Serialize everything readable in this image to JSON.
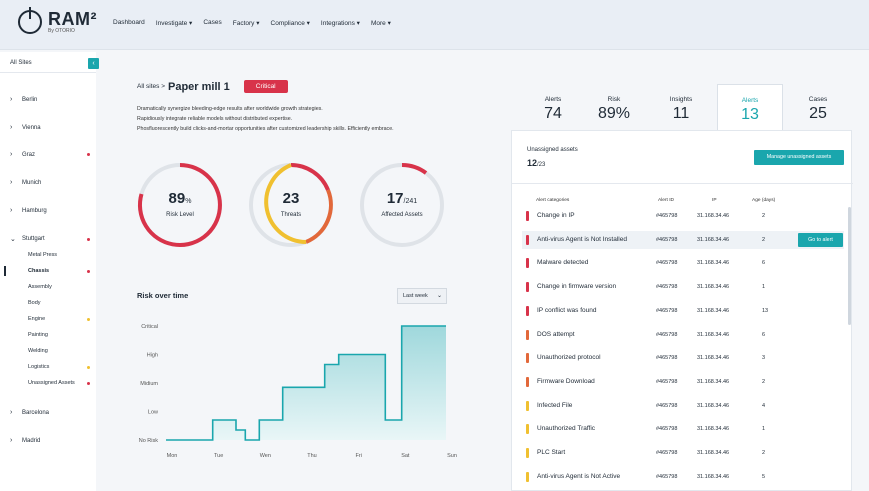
{
  "app": {
    "name": "RAM²",
    "subtitle": "By OTORIO"
  },
  "nav": [
    "Dashboard",
    "Investigate ▾",
    "Cases",
    "Factory ▾",
    "Compliance ▾",
    "Integrations ▾",
    "More ▾"
  ],
  "sidebar": {
    "header": "All Sites",
    "collapse_icon": "‹",
    "sites": [
      {
        "label": "Berlin",
        "chev": "›",
        "dot": ""
      },
      {
        "label": "Vienna",
        "chev": "›",
        "dot": ""
      },
      {
        "label": "Graz",
        "chev": "›",
        "dot": "#d8334a"
      },
      {
        "label": "Munich",
        "chev": "›",
        "dot": ""
      },
      {
        "label": "Hamburg",
        "chev": "›",
        "dot": ""
      },
      {
        "label": "Stuttgart",
        "chev": "⌄",
        "dot": "#d8334a"
      },
      {
        "label": "Barcelona",
        "chev": "›",
        "dot": ""
      },
      {
        "label": "Madrid",
        "chev": "›",
        "dot": ""
      }
    ],
    "sub_items": [
      {
        "label": "Metal Press",
        "dot": ""
      },
      {
        "label": "Chassis",
        "dot": "#d8334a"
      },
      {
        "label": "Assembly",
        "dot": ""
      },
      {
        "label": "Body",
        "dot": ""
      },
      {
        "label": "Engine",
        "dot": "#f0c030"
      },
      {
        "label": "Painting",
        "dot": ""
      },
      {
        "label": "Welding",
        "dot": ""
      },
      {
        "label": "Logistics",
        "dot": "#f0c030"
      },
      {
        "label": "Unassigned Assets",
        "dot": "#d8334a"
      }
    ]
  },
  "header": {
    "breadcrumb": "All sites >",
    "title": "Paper mill 1",
    "badge": "Critical",
    "description": [
      "Dramatically synergize bleeding-edge results after worldwide growth strategies.",
      "Rapidiously integrate reliable models without distributed expertise.",
      "Phosfluorescently build clicks-and-mortar opportunities after customized leadership skills. Efficiently embrace."
    ]
  },
  "gauges": [
    {
      "value": "89",
      "suffix": "%",
      "label": "Risk Level"
    },
    {
      "value": "23",
      "suffix": "",
      "label": "Threats"
    },
    {
      "value": "17",
      "suffix": "/241",
      "label": "Affected Assets"
    }
  ],
  "colors": {
    "accent": "#1aa6ad",
    "critical": "#d8334a",
    "high": "#e2683a",
    "medium": "#f0c030"
  },
  "risk_over_time": {
    "title": "Risk over time",
    "select_value": "Last week",
    "chart_data": {
      "type": "line",
      "x": [
        "Mon",
        "Tue",
        "Wen",
        "Thu",
        "Fri",
        "Sat",
        "Sun"
      ],
      "ylabels": [
        "Critical",
        "High",
        "Midium",
        "Low",
        "No Risk"
      ],
      "ylim": [
        0,
        4
      ],
      "points": [
        [
          0,
          0
        ],
        [
          1,
          0
        ],
        [
          1,
          0.7
        ],
        [
          1.5,
          0.7
        ],
        [
          1.5,
          0.35
        ],
        [
          1.7,
          0.35
        ],
        [
          1.7,
          0
        ],
        [
          2,
          0
        ],
        [
          2,
          0.7
        ],
        [
          2.5,
          0.7
        ],
        [
          2.5,
          1.85
        ],
        [
          3.4,
          1.85
        ],
        [
          3.4,
          2.65
        ],
        [
          3.7,
          2.65
        ],
        [
          3.7,
          3
        ],
        [
          4.7,
          3
        ],
        [
          4.7,
          0.7
        ],
        [
          5.05,
          0.7
        ],
        [
          5.05,
          4
        ],
        [
          6,
          4
        ]
      ]
    }
  },
  "tabs": [
    {
      "label": "Alerts",
      "value": "74"
    },
    {
      "label": "Risk",
      "value": "89%"
    },
    {
      "label": "Insights",
      "value": "11"
    },
    {
      "label": "Alerts",
      "value": "13"
    },
    {
      "label": "Cases",
      "value": "25"
    }
  ],
  "unassigned": {
    "title": "Unassigned assets",
    "count": "12",
    "total": "/23",
    "button": "Manage unassigned assets"
  },
  "table": {
    "headers": [
      "Alert categories",
      "Alert ID",
      "IP",
      "Age (days)"
    ],
    "go_button": "Go to alert",
    "rows": [
      {
        "cat": "Change in IP",
        "id": "#465798",
        "ip": "31.168.34.46",
        "age": "2",
        "color": "#d8334a"
      },
      {
        "cat": "Anti-virus Agent is Not Installed",
        "id": "#465798",
        "ip": "31.168.34.46",
        "age": "2",
        "color": "#d8334a"
      },
      {
        "cat": "Malware detected",
        "id": "#465798",
        "ip": "31.168.34.46",
        "age": "6",
        "color": "#d8334a"
      },
      {
        "cat": "Change in firmware version",
        "id": "#465798",
        "ip": "31.168.34.46",
        "age": "1",
        "color": "#d8334a"
      },
      {
        "cat": "IP conflict was found",
        "id": "#465798",
        "ip": "31.168.34.46",
        "age": "13",
        "color": "#d8334a"
      },
      {
        "cat": "DOS attempt",
        "id": "#465798",
        "ip": "31.168.34.46",
        "age": "6",
        "color": "#e2683a"
      },
      {
        "cat": "Unauthorized protocol",
        "id": "#465798",
        "ip": "31.168.34.46",
        "age": "3",
        "color": "#e2683a"
      },
      {
        "cat": "Firmware Download",
        "id": "#465798",
        "ip": "31.168.34.46",
        "age": "2",
        "color": "#e2683a"
      },
      {
        "cat": "Infected File",
        "id": "#465798",
        "ip": "31.168.34.46",
        "age": "4",
        "color": "#f0c030"
      },
      {
        "cat": "Unauthorized Traffic",
        "id": "#465798",
        "ip": "31.168.34.46",
        "age": "1",
        "color": "#f0c030"
      },
      {
        "cat": "PLC Start",
        "id": "#465798",
        "ip": "31.168.34.46",
        "age": "2",
        "color": "#f0c030"
      },
      {
        "cat": "Anti-virus Agent is Not Active",
        "id": "#465798",
        "ip": "31.168.34.46",
        "age": "5",
        "color": "#f0c030"
      }
    ]
  }
}
